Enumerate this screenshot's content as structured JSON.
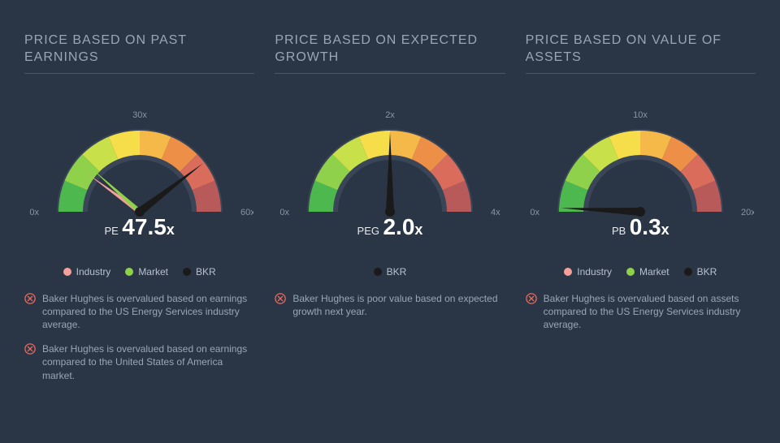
{
  "background_color": "#2a3646",
  "title_color": "#9aa5b5",
  "divider_color": "#4a5568",
  "gauge_colors": [
    "#4db84d",
    "#8fd14b",
    "#c8e04a",
    "#f5de4a",
    "#f5b94a",
    "#ed8f47",
    "#d96c5a",
    "#b85a5a"
  ],
  "track_color": "#3a4658",
  "needle_colors": {
    "industry": "#f5a09a",
    "market": "#8fd14b",
    "bkr": "#1a1a1a"
  },
  "legend_colors": {
    "industry": "#f5a09a",
    "market": "#8fd14b",
    "bkr": "#1a1a1a"
  },
  "note_icon_color": "#e86a5e",
  "panels": [
    {
      "title": "PRICE BASED ON PAST EARNINGS",
      "gauge": {
        "min": 0,
        "mid": 30,
        "max": 60,
        "min_label": "0x",
        "mid_label": "30x",
        "max_label": "60x",
        "label": "PE",
        "value": "47.5",
        "suffix": "x",
        "needles": [
          {
            "key": "industry",
            "value": 12
          },
          {
            "key": "market",
            "value": 14
          },
          {
            "key": "bkr",
            "value": 47.5
          }
        ]
      },
      "legend": [
        "industry",
        "market",
        "bkr"
      ],
      "notes": [
        "Baker Hughes is overvalued based on earnings compared to the US Energy Services industry average.",
        "Baker Hughes is overvalued based on earnings compared to the United States of America market."
      ]
    },
    {
      "title": "PRICE BASED ON EXPECTED GROWTH",
      "gauge": {
        "min": 0,
        "mid": 2,
        "max": 4,
        "min_label": "0x",
        "mid_label": "2x",
        "max_label": "4x",
        "label": "PEG",
        "value": "2.0",
        "suffix": "x",
        "needles": [
          {
            "key": "bkr",
            "value": 2.0
          }
        ]
      },
      "legend": [
        "bkr"
      ],
      "notes": [
        "Baker Hughes is poor value based on expected growth next year."
      ]
    },
    {
      "title": "PRICE BASED ON VALUE OF ASSETS",
      "gauge": {
        "min": 0,
        "mid": 10,
        "max": 20,
        "min_label": "0x",
        "mid_label": "10x",
        "max_label": "20x",
        "label": "PB",
        "value": "0.3",
        "suffix": "x",
        "needles": [
          {
            "key": "industry",
            "value": 0.3
          },
          {
            "key": "market",
            "value": 0.3
          },
          {
            "key": "bkr",
            "value": 0.3
          }
        ]
      },
      "legend": [
        "industry",
        "market",
        "bkr"
      ],
      "notes": [
        "Baker Hughes is overvalued based on assets compared to the US Energy Services industry average."
      ]
    }
  ],
  "legend_labels": {
    "industry": "Industry",
    "market": "Market",
    "bkr": "BKR"
  }
}
